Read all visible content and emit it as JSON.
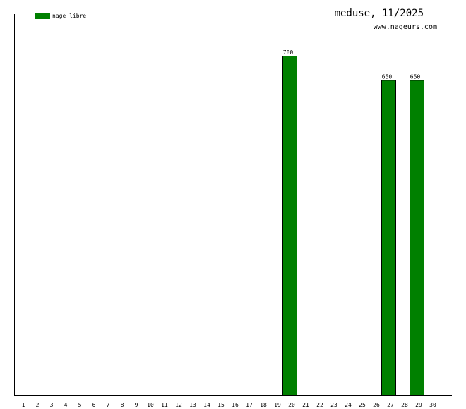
{
  "chart_data": {
    "type": "bar",
    "title": "meduse, 11/2025",
    "subtitle": "www.nageurs.com",
    "categories": [
      "1",
      "2",
      "3",
      "4",
      "5",
      "6",
      "7",
      "8",
      "9",
      "10",
      "11",
      "12",
      "13",
      "14",
      "15",
      "16",
      "17",
      "18",
      "19",
      "20",
      "21",
      "22",
      "23",
      "24",
      "25",
      "26",
      "27",
      "28",
      "29",
      "30"
    ],
    "series": [
      {
        "name": "nage libre",
        "color": "#008000",
        "values": [
          0,
          0,
          0,
          0,
          0,
          0,
          0,
          0,
          0,
          0,
          0,
          0,
          0,
          0,
          0,
          0,
          0,
          0,
          0,
          700,
          0,
          0,
          0,
          0,
          0,
          0,
          650,
          0,
          650,
          0
        ]
      }
    ],
    "data_labels": true,
    "legend": "top-left",
    "grid": false
  }
}
